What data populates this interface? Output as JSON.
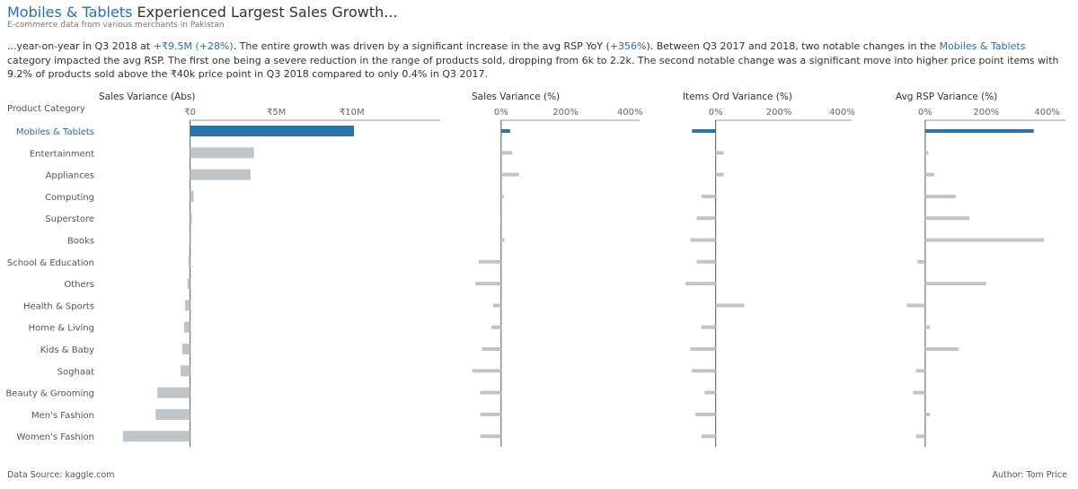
{
  "header": {
    "title_highlight": "Mobiles & Tablets",
    "title_rest": " Experienced Largest Sales Growth...",
    "subtitle": "E-commerce data from various merchants in Pakistan"
  },
  "description": {
    "p1": "...year-on-year in Q3 2018 at ",
    "v1": "+₹9.5M (+28%)",
    "p2": ". The entire growth was driven by a significant increase in the avg RSP YoY (",
    "v2": "+356%",
    "p3": "). Between Q3 2017 and 2018, two notable changes in the ",
    "v3": "Mobiles & Tablets",
    "p4": " category impacted the avg RSP. The first one being a severe reduction in the range of products sold, dropping from 6k to 2.2k. The second notable change was a significant move into higher price point items with 9.2% of products sold above the ₹40k price point in Q3 2018 compared to only 0.4% in Q3 2017."
  },
  "footer": {
    "source": "Data Source: kaggle.com",
    "author": "Author: Tom Price"
  },
  "colors": {
    "highlight": "#2a74a8",
    "bar": "#bfc4c9",
    "axis": "#555555",
    "text": "#555555",
    "highlight_text": "#2a6fa8"
  },
  "chart_data": {
    "type": "bar",
    "row_header": "Product Category",
    "categories": [
      "Mobiles & Tablets",
      "Entertainment",
      "Appliances",
      "Computing",
      "Superstore",
      "Books",
      "School & Education",
      "Others",
      "Health & Sports",
      "Home & Living",
      "Kids & Baby",
      "Soghaat",
      "Beauty & Grooming",
      "Men's Fashion",
      "Women's Fashion"
    ],
    "highlight_category": "Mobiles & Tablets",
    "panels": [
      {
        "title": "Sales Variance (Abs)",
        "ticks": [
          "₹0",
          "₹5M",
          "₹10M"
        ],
        "tick_values": [
          0,
          5,
          10
        ],
        "unit": "₹M",
        "xlim": [
          -5.4,
          14.5
        ],
        "values": [
          9.5,
          3.7,
          3.5,
          0.2,
          0.1,
          0,
          -0.1,
          -0.15,
          -0.3,
          -0.35,
          -0.45,
          -0.55,
          -1.9,
          -2.0,
          -3.9
        ]
      },
      {
        "title": "Sales Variance (%)",
        "ticks": [
          "0%",
          "200%",
          "400%"
        ],
        "tick_values": [
          0,
          200,
          400
        ],
        "unit": "%",
        "xlim": [
          -100,
          430
        ],
        "values": [
          28,
          35,
          55,
          8,
          3,
          10,
          -70,
          -80,
          -25,
          -30,
          -60,
          -90,
          -65,
          -65,
          -65
        ]
      },
      {
        "title": "Items Ord Variance (%)",
        "ticks": [
          "0%",
          "200%",
          "400%"
        ],
        "tick_values": [
          0,
          200,
          400
        ],
        "unit": "%",
        "xlim": [
          -110,
          430
        ],
        "values": [
          -75,
          25,
          25,
          -45,
          -60,
          -80,
          -60,
          -95,
          90,
          -45,
          -80,
          -75,
          -35,
          -65,
          -45
        ]
      },
      {
        "title": "Avg RSP Variance (%)",
        "ticks": [
          "0%",
          "200%",
          "400%"
        ],
        "tick_values": [
          0,
          200,
          400
        ],
        "unit": "%",
        "xlim": [
          -100,
          460
        ],
        "values": [
          356,
          10,
          30,
          100,
          145,
          390,
          -25,
          200,
          -60,
          15,
          110,
          -30,
          -40,
          15,
          -30
        ]
      }
    ]
  }
}
